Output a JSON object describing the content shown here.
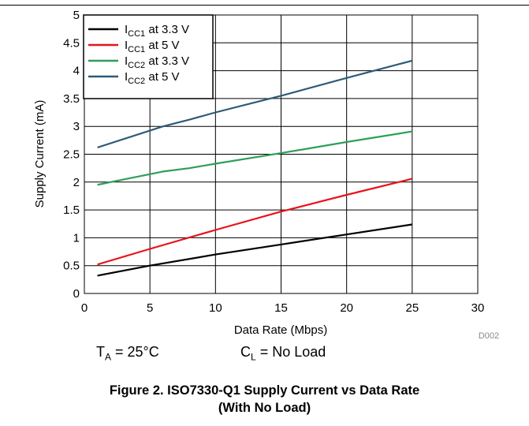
{
  "chart_data": {
    "type": "line",
    "xlabel": "Data Rate (Mbps)",
    "ylabel": "Supply Current (mA)",
    "xlim": [
      0,
      30
    ],
    "ylim": [
      0,
      5
    ],
    "x_ticks": [
      "0",
      "5",
      "10",
      "15",
      "20",
      "25",
      "30"
    ],
    "y_ticks": [
      "0",
      "0.5",
      "1",
      "1.5",
      "2",
      "2.5",
      "3",
      "3.5",
      "4",
      "4.5",
      "5"
    ],
    "grid": true,
    "legend_position": "top-left",
    "series": [
      {
        "name": "ICC1 at 3.3 V",
        "name_main": "I",
        "name_sub": "CC1",
        "name_rest": " at 3.3 V",
        "color": "#000000",
        "x": [
          1,
          5,
          10,
          15,
          20,
          25
        ],
        "y": [
          0.32,
          0.5,
          0.7,
          0.88,
          1.06,
          1.24
        ]
      },
      {
        "name": "ICC1 at 5 V",
        "name_main": "I",
        "name_sub": "CC1",
        "name_rest": " at 5 V",
        "color": "#e8131b",
        "x": [
          1,
          5,
          10,
          15,
          20,
          25
        ],
        "y": [
          0.52,
          0.8,
          1.14,
          1.47,
          1.77,
          2.06
        ]
      },
      {
        "name": "ICC2 at 3.3 V",
        "name_main": "I",
        "name_sub": "CC2",
        "name_rest": " at 3.3 V",
        "color": "#2f9e58",
        "x": [
          1,
          2,
          6,
          8,
          10,
          15,
          20,
          25
        ],
        "y": [
          1.95,
          2.0,
          2.19,
          2.25,
          2.33,
          2.52,
          2.72,
          2.91
        ]
      },
      {
        "name": "ICC2 at 5 V",
        "name_main": "I",
        "name_sub": "CC2",
        "name_rest": " at  5 V",
        "color": "#2d5b78",
        "x": [
          1,
          6,
          8,
          10,
          15,
          20,
          25
        ],
        "y": [
          2.62,
          3.0,
          3.12,
          3.25,
          3.55,
          3.87,
          4.18
        ]
      }
    ]
  },
  "figure_id": "D002",
  "conditions": {
    "temp_main": "T",
    "temp_sub": "A",
    "temp_value": " = 25°C",
    "load_main": "C",
    "load_sub": "L",
    "load_value": " = No Load"
  },
  "caption": {
    "line1": "Figure 2. ISO7330-Q1 Supply Current vs Data Rate",
    "line2": "(With No Load)"
  }
}
